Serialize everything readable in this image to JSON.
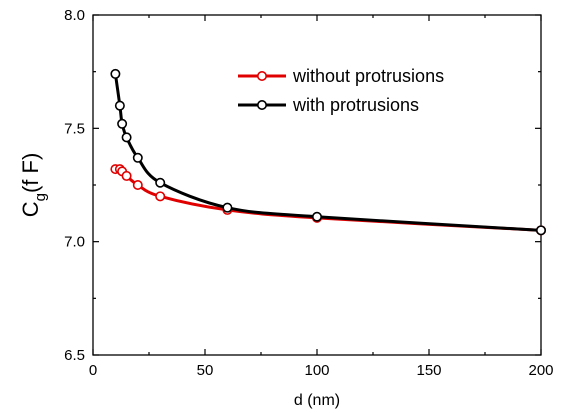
{
  "chart_data": {
    "type": "line",
    "title": "",
    "xlabel": "d (nm)",
    "ylabel": {
      "main": "C",
      "subscript": "g",
      "unit": "(f F)"
    },
    "xlim": [
      0,
      200
    ],
    "ylim": [
      6.5,
      8.0
    ],
    "xticks": [
      0,
      50,
      100,
      150,
      200
    ],
    "yticks": [
      6.5,
      7.0,
      7.5,
      8.0
    ],
    "xtick_labels": [
      "0",
      "50",
      "100",
      "150",
      "200"
    ],
    "ytick_labels": [
      "6.5",
      "7.0",
      "7.5",
      "8.0"
    ],
    "grid": false,
    "legend_position": "top-right",
    "series": [
      {
        "name": "without protrusions",
        "color": "#e00000",
        "x": [
          10,
          12,
          13,
          15,
          20,
          30,
          60,
          100,
          200
        ],
        "y": [
          7.32,
          7.32,
          7.31,
          7.29,
          7.25,
          7.2,
          7.14,
          7.105,
          7.05
        ]
      },
      {
        "name": "with protrusions",
        "color": "#000000",
        "x": [
          10,
          12,
          13,
          15,
          20,
          30,
          60,
          100,
          200
        ],
        "y": [
          7.74,
          7.6,
          7.52,
          7.46,
          7.37,
          7.26,
          7.15,
          7.11,
          7.05
        ]
      }
    ]
  }
}
